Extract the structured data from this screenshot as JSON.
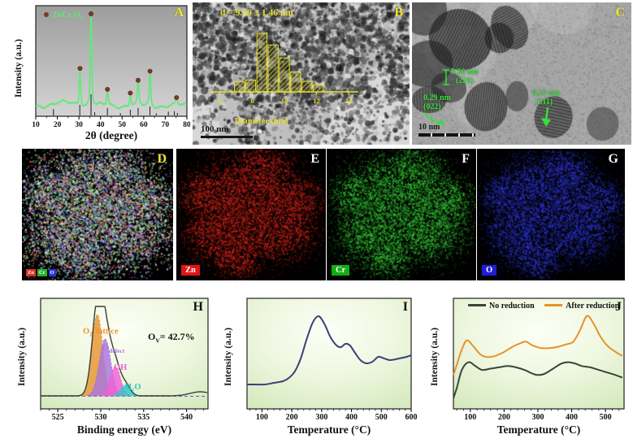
{
  "panels": {
    "A": {
      "label": "A",
      "phase": "ZnCr₂O₄",
      "xlabel": "2θ (degree)",
      "ylabel": "Intensity (a.u.)"
    },
    "B": {
      "label": "B",
      "size_annotation": "d = 9.69 ± 1.46 nm",
      "hist_xlabel": "Diameter (nm)",
      "scalebar": "100 nm"
    },
    "C": {
      "label": "C",
      "scalebar": "10 nm",
      "annotations": [
        {
          "spacing": "0.30 nm",
          "plane": "(220)"
        },
        {
          "spacing": "0.29 nm",
          "plane": "(022)"
        },
        {
          "spacing": "0.25 nm",
          "plane": "(311)"
        }
      ]
    },
    "D": {
      "label": "D",
      "legend": [
        {
          "text": "Zn",
          "color": "#d83224"
        },
        {
          "text": "Cr",
          "color": "#28b428"
        },
        {
          "text": "O",
          "color": "#2a35d8"
        }
      ]
    },
    "E": {
      "label": "E",
      "tag": "Zn",
      "tag_color": "#de1414"
    },
    "F": {
      "label": "F",
      "tag": "Cr",
      "tag_color": "#12ae12"
    },
    "G": {
      "label": "G",
      "tag": "O",
      "tag_color": "#1d1dd8"
    },
    "H": {
      "label": "H",
      "xlabel": "Binding energy (eV)",
      "ylabel": "Intensity (a.u.)",
      "ov": {
        "pre": "O",
        "sub": "V",
        "post": "= 42.7%"
      },
      "peak_labels": {
        "lattice_main": "O",
        "lattice_sub": "2",
        "lattice_sup": "−",
        "lattice_rest": "lattice",
        "defect_main": "O",
        "defect_sub": "defect",
        "oh": "OH",
        "water": "H₂O"
      }
    },
    "I": {
      "label": "I",
      "xlabel": "Temperature (°C)",
      "ylabel": "Intensity (a.u.)"
    },
    "J": {
      "label": "J",
      "xlabel": "Temperature (°C)",
      "ylabel": "Intensity (a.u.)",
      "legend": [
        "No reduction",
        "After reduction"
      ]
    }
  },
  "chart_data": [
    {
      "panel": "A",
      "type": "line",
      "name": "XRD pattern",
      "xlabel": "2θ (degree)",
      "ylabel": "Intensity (a.u.)",
      "xlim": [
        10,
        80
      ],
      "xticks": [
        10,
        20,
        30,
        40,
        50,
        60,
        70,
        80
      ],
      "curve_color": "#62e87a",
      "marker_color": "#7b3a28",
      "phase_label": "ZnCr₂O₄",
      "peaks": [
        {
          "two_theta": 30.5,
          "rel_intensity": 0.4
        },
        {
          "two_theta": 35.6,
          "rel_intensity": 1.0
        },
        {
          "two_theta": 43.2,
          "rel_intensity": 0.17
        },
        {
          "two_theta": 53.8,
          "rel_intensity": 0.13
        },
        {
          "two_theta": 57.4,
          "rel_intensity": 0.27
        },
        {
          "two_theta": 62.9,
          "rel_intensity": 0.37
        },
        {
          "two_theta": 75.2,
          "rel_intensity": 0.08
        }
      ],
      "reference_sticks": [
        [
          18.2,
          0.3
        ],
        [
          30.4,
          0.5
        ],
        [
          35.6,
          1.0
        ],
        [
          37.3,
          0.15
        ],
        [
          43.2,
          0.35
        ],
        [
          49.2,
          0.1
        ],
        [
          53.8,
          0.27
        ],
        [
          57.4,
          0.35
        ],
        [
          62.9,
          0.42
        ],
        [
          65.8,
          0.1
        ],
        [
          71.4,
          0.18
        ],
        [
          74.2,
          0.2
        ],
        [
          75.6,
          0.12
        ]
      ]
    },
    {
      "panel": "B",
      "type": "bar",
      "title": "d = 9.69 ± 1.46 nm",
      "xlabel": "Diameter (nm)",
      "xlim": [
        5.5,
        14.5
      ],
      "xticks": [
        6,
        8,
        10,
        12,
        14
      ],
      "bar_color": "#e8e030",
      "bin_width": 0.62,
      "bins": [
        {
          "center": 7.2,
          "freq": 0.17
        },
        {
          "center": 7.9,
          "freq": 0.2
        },
        {
          "center": 8.6,
          "freq": 1.0
        },
        {
          "center": 9.3,
          "freq": 0.8
        },
        {
          "center": 10.0,
          "freq": 0.58
        },
        {
          "center": 10.7,
          "freq": 0.34
        },
        {
          "center": 11.4,
          "freq": 0.18
        },
        {
          "center": 12.1,
          "freq": 0.12
        }
      ]
    },
    {
      "panel": "H",
      "type": "area",
      "name": "O 1s XPS",
      "xlabel": "Binding energy (eV)",
      "ylabel": "Intensity (a.u.)",
      "xlim": [
        523,
        542.5
      ],
      "xticks": [
        525,
        530,
        535,
        540
      ],
      "ov_fraction": "42.7%",
      "envelope_color": "#3c3c3c",
      "baseline_color": "#6858c8",
      "components": [
        {
          "name": "O2- lattice",
          "center": 529.6,
          "sigma": 0.62,
          "height": 1.0,
          "color": "#e8952f"
        },
        {
          "name": "O defect",
          "center": 530.5,
          "sigma": 0.66,
          "height": 0.7,
          "color": "#a875e0"
        },
        {
          "name": "OH",
          "center": 531.7,
          "sigma": 0.6,
          "height": 0.36,
          "color": "#f060d8"
        },
        {
          "name": "H2O",
          "center": 532.9,
          "sigma": 0.55,
          "height": 0.13,
          "color": "#30c8c8"
        }
      ]
    },
    {
      "panel": "I",
      "type": "line",
      "xlabel": "Temperature (°C)",
      "ylabel": "Intensity (a.u.)",
      "xlim": [
        50,
        600
      ],
      "xticks": [
        100,
        200,
        300,
        400,
        500,
        600
      ],
      "series": [
        {
          "name": "",
          "color": "#3f3f78",
          "x": [
            50,
            80,
            110,
            140,
            170,
            190,
            210,
            230,
            250,
            270,
            290,
            310,
            330,
            350,
            365,
            380,
            395,
            410,
            430,
            450,
            470,
            490,
            510,
            530,
            560,
            585,
            600
          ],
          "y": [
            0.1,
            0.1,
            0.1,
            0.11,
            0.12,
            0.14,
            0.18,
            0.26,
            0.38,
            0.48,
            0.52,
            0.47,
            0.39,
            0.34,
            0.33,
            0.35,
            0.34,
            0.3,
            0.25,
            0.23,
            0.24,
            0.27,
            0.26,
            0.25,
            0.26,
            0.27,
            0.28
          ]
        }
      ]
    },
    {
      "panel": "J",
      "type": "line",
      "xlabel": "Temperature (°C)",
      "ylabel": "Intensity (a.u.)",
      "xlim": [
        50,
        555
      ],
      "xticks": [
        100,
        200,
        300,
        400,
        500
      ],
      "series": [
        {
          "name": "No reduction",
          "color": "#37463a",
          "x": [
            50,
            60,
            75,
            95,
            115,
            135,
            160,
            185,
            210,
            235,
            260,
            285,
            300,
            320,
            345,
            370,
            390,
            410,
            430,
            455,
            480,
            505,
            530,
            550
          ],
          "y": [
            0.02,
            0.1,
            0.24,
            0.3,
            0.27,
            0.24,
            0.25,
            0.26,
            0.27,
            0.26,
            0.24,
            0.21,
            0.2,
            0.21,
            0.25,
            0.29,
            0.3,
            0.29,
            0.27,
            0.26,
            0.24,
            0.22,
            0.2,
            0.18
          ]
        },
        {
          "name": "After reduction",
          "color": "#e8922a",
          "x": [
            50,
            60,
            75,
            90,
            110,
            130,
            150,
            175,
            200,
            225,
            250,
            265,
            285,
            310,
            335,
            360,
            385,
            405,
            425,
            445,
            465,
            485,
            505,
            530,
            550
          ],
          "y": [
            0.2,
            0.28,
            0.4,
            0.47,
            0.42,
            0.36,
            0.34,
            0.35,
            0.38,
            0.42,
            0.45,
            0.46,
            0.43,
            0.41,
            0.41,
            0.42,
            0.44,
            0.46,
            0.55,
            0.66,
            0.6,
            0.5,
            0.43,
            0.38,
            0.35
          ]
        }
      ]
    }
  ]
}
